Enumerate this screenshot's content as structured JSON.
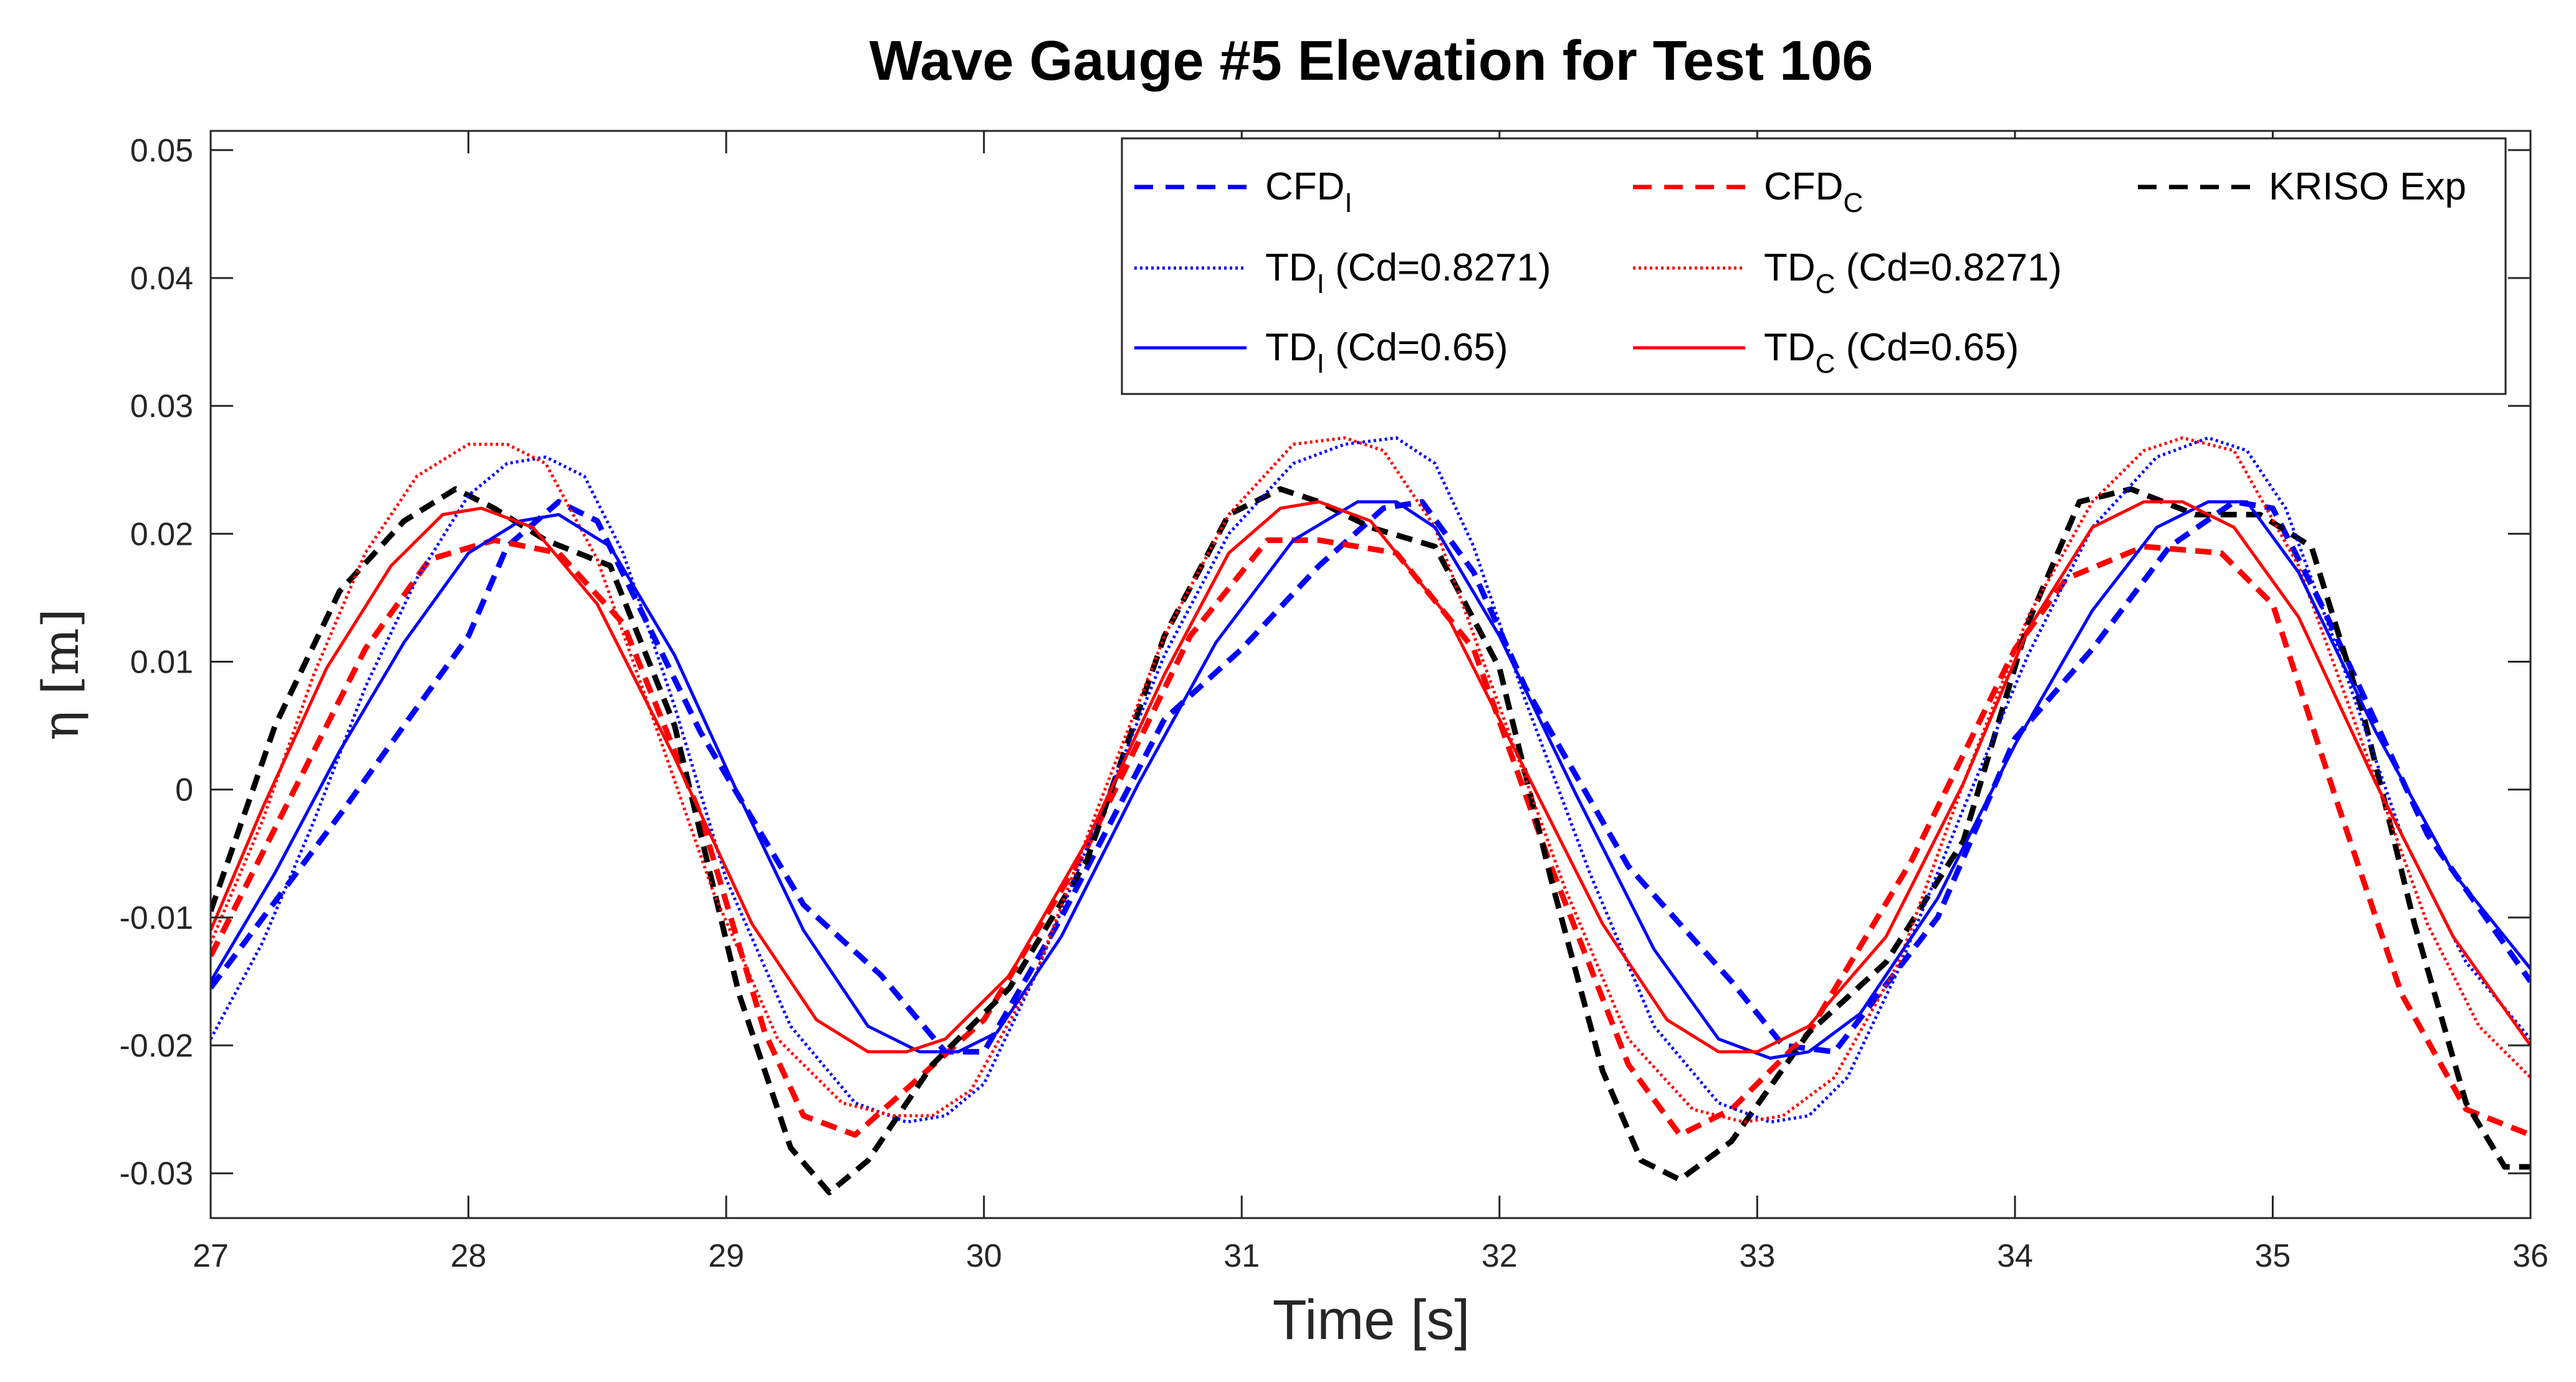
{
  "chart_data": {
    "type": "line",
    "title": "Wave Gauge #5 Elevation for Test 106",
    "xlabel": "Time [s]",
    "ylabel": "η [m]",
    "xlim": [
      27,
      36
    ],
    "ylim": [
      -0.0335,
      0.0515
    ],
    "xticks": [
      27,
      28,
      29,
      30,
      31,
      32,
      33,
      34,
      35,
      36
    ],
    "xtick_labels": [
      "27",
      "28",
      "29",
      "30",
      "31",
      "32",
      "33",
      "34",
      "35",
      "36"
    ],
    "yticks": [
      -0.03,
      -0.02,
      -0.01,
      0,
      0.01,
      0.02,
      0.03,
      0.04,
      0.05
    ],
    "ytick_labels": [
      "-0.03",
      "-0.02",
      "-0.01",
      "0",
      "0.01",
      "0.02",
      "0.03",
      "0.04",
      "0.05"
    ],
    "grid": false,
    "legend_position": "top-right",
    "series": [
      {
        "id": "cfd-i",
        "name": "CFD",
        "subscript": "I",
        "suffix": "",
        "color": "#0000ff",
        "style": "dashed",
        "x": [
          27.0,
          27.5,
          28.0,
          28.15,
          28.35,
          28.5,
          28.9,
          29.3,
          29.6,
          29.85,
          30.0,
          30.3,
          30.7,
          31.0,
          31.3,
          31.55,
          31.7,
          31.9,
          32.1,
          32.5,
          32.9,
          33.1,
          33.3,
          33.7,
          34.0,
          34.3,
          34.6,
          34.85,
          35.0,
          35.2,
          35.6,
          36.0
        ],
        "y": [
          -0.0155,
          -0.002,
          0.012,
          0.019,
          0.0225,
          0.021,
          0.0045,
          -0.009,
          -0.0145,
          -0.0205,
          -0.0205,
          -0.01,
          0.0055,
          0.011,
          0.0175,
          0.022,
          0.0225,
          0.017,
          0.008,
          -0.006,
          -0.015,
          -0.02,
          -0.0205,
          -0.01,
          0.004,
          0.011,
          0.019,
          0.0225,
          0.022,
          0.014,
          -0.0035,
          -0.015
        ]
      },
      {
        "id": "cfd-c",
        "name": "CFD",
        "subscript": "C",
        "suffix": "",
        "color": "#ff0000",
        "style": "dashed",
        "x": [
          27.0,
          27.3,
          27.6,
          27.85,
          28.1,
          28.35,
          28.6,
          28.9,
          29.15,
          29.3,
          29.5,
          29.75,
          30.0,
          30.4,
          30.8,
          31.1,
          31.3,
          31.6,
          31.9,
          32.2,
          32.5,
          32.7,
          32.9,
          33.2,
          33.6,
          34.0,
          34.2,
          34.5,
          34.8,
          35.0,
          35.25,
          35.5,
          35.75,
          36.0
        ],
        "y": [
          -0.013,
          -0.001,
          0.011,
          0.018,
          0.0195,
          0.0185,
          0.013,
          -0.002,
          -0.019,
          -0.0255,
          -0.027,
          -0.0225,
          -0.018,
          -0.0045,
          0.012,
          0.0195,
          0.0195,
          0.0185,
          0.011,
          -0.006,
          -0.0215,
          -0.027,
          -0.025,
          -0.019,
          -0.0055,
          0.011,
          0.0165,
          0.019,
          0.0185,
          0.0145,
          -0.001,
          -0.016,
          -0.025,
          -0.027
        ]
      },
      {
        "id": "kriso-exp",
        "name": "KRISO Exp",
        "subscript": "",
        "suffix": "",
        "color": "#000000",
        "style": "dashed",
        "x": [
          27.0,
          27.25,
          27.5,
          27.75,
          27.95,
          28.1,
          28.3,
          28.55,
          28.8,
          29.05,
          29.25,
          29.4,
          29.55,
          29.8,
          30.1,
          30.4,
          30.7,
          30.95,
          31.15,
          31.3,
          31.5,
          31.75,
          32.0,
          32.2,
          32.4,
          32.55,
          32.7,
          32.9,
          33.2,
          33.5,
          33.8,
          34.05,
          34.25,
          34.45,
          34.7,
          34.95,
          35.15,
          35.35,
          35.55,
          35.75,
          35.9,
          36.0
        ],
        "y": [
          -0.0095,
          0.005,
          0.0155,
          0.021,
          0.0235,
          0.022,
          0.0195,
          0.0175,
          0.005,
          -0.016,
          -0.028,
          -0.0315,
          -0.029,
          -0.0215,
          -0.0155,
          -0.0055,
          0.012,
          0.0215,
          0.0235,
          0.0225,
          0.0205,
          0.019,
          0.0095,
          -0.007,
          -0.022,
          -0.029,
          -0.0305,
          -0.0275,
          -0.019,
          -0.0135,
          -0.004,
          0.013,
          0.0225,
          0.0235,
          0.0215,
          0.0215,
          0.019,
          0.006,
          -0.0105,
          -0.0245,
          -0.0295,
          -0.0295
        ]
      },
      {
        "id": "td-i-08271",
        "name": "TD",
        "subscript": "I",
        "suffix": " (Cd=0.8271)",
        "color": "#0000ff",
        "style": "dotted",
        "x": [
          27.0,
          27.2,
          27.4,
          27.6,
          27.8,
          28.0,
          28.15,
          28.3,
          28.45,
          28.6,
          28.8,
          29.0,
          29.25,
          29.5,
          29.7,
          29.85,
          30.0,
          30.2,
          30.45,
          30.7,
          30.95,
          31.2,
          31.4,
          31.6,
          31.75,
          31.9,
          32.1,
          32.35,
          32.6,
          32.85,
          33.05,
          33.2,
          33.35,
          33.55,
          33.8,
          34.05,
          34.3,
          34.55,
          34.75,
          34.9,
          35.05,
          35.25,
          35.5,
          35.75,
          36.0
        ],
        "y": [
          -0.0195,
          -0.012,
          -0.0025,
          0.008,
          0.0165,
          0.023,
          0.0255,
          0.026,
          0.0245,
          0.0185,
          0.0065,
          -0.007,
          -0.0185,
          -0.0245,
          -0.026,
          -0.0255,
          -0.023,
          -0.0145,
          -0.002,
          0.0105,
          0.02,
          0.0255,
          0.027,
          0.0275,
          0.0255,
          0.019,
          0.007,
          -0.0065,
          -0.0185,
          -0.0245,
          -0.026,
          -0.0255,
          -0.0225,
          -0.014,
          -0.0015,
          0.0105,
          0.0205,
          0.026,
          0.0275,
          0.0265,
          0.022,
          0.011,
          -0.0035,
          -0.0135,
          -0.0195
        ]
      },
      {
        "id": "td-c-08271",
        "name": "TD",
        "subscript": "C",
        "suffix": " (Cd=0.8271)",
        "color": "#ff0000",
        "style": "dotted",
        "x": [
          27.0,
          27.2,
          27.4,
          27.6,
          27.8,
          28.0,
          28.15,
          28.3,
          28.5,
          28.7,
          28.95,
          29.2,
          29.45,
          29.65,
          29.8,
          29.95,
          30.2,
          30.45,
          30.7,
          30.95,
          31.2,
          31.4,
          31.55,
          31.75,
          32.0,
          32.25,
          32.5,
          32.75,
          32.95,
          33.1,
          33.3,
          33.55,
          33.8,
          34.05,
          34.3,
          34.5,
          34.65,
          34.85,
          35.1,
          35.35,
          35.6,
          35.8,
          36.0
        ],
        "y": [
          -0.012,
          -0.0025,
          0.009,
          0.0185,
          0.0245,
          0.027,
          0.027,
          0.0255,
          0.018,
          0.0065,
          -0.008,
          -0.0195,
          -0.0245,
          -0.0255,
          -0.0255,
          -0.0235,
          -0.0145,
          -0.001,
          0.012,
          0.0215,
          0.027,
          0.0275,
          0.0265,
          0.0205,
          0.0065,
          -0.0075,
          -0.0195,
          -0.025,
          -0.026,
          -0.0255,
          -0.0225,
          -0.0135,
          0.0005,
          0.0135,
          0.0225,
          0.0265,
          0.0275,
          0.0265,
          0.0175,
          0.0035,
          -0.0105,
          -0.0185,
          -0.0225
        ]
      },
      {
        "id": "td-i-065",
        "name": "TD",
        "subscript": "I",
        "suffix": " (Cd=0.65)",
        "color": "#0000ff",
        "style": "solid",
        "x": [
          27.0,
          27.25,
          27.5,
          27.75,
          28.0,
          28.2,
          28.35,
          28.55,
          28.8,
          29.05,
          29.3,
          29.55,
          29.75,
          29.9,
          30.05,
          30.3,
          30.6,
          30.9,
          31.2,
          31.45,
          31.6,
          31.75,
          32.0,
          32.3,
          32.6,
          32.85,
          33.05,
          33.2,
          33.4,
          33.7,
          34.0,
          34.3,
          34.55,
          34.75,
          34.9,
          35.1,
          35.4,
          35.7,
          36.0
        ],
        "y": [
          -0.015,
          -0.0065,
          0.003,
          0.0115,
          0.0185,
          0.021,
          0.0215,
          0.019,
          0.0105,
          -0.0005,
          -0.011,
          -0.0185,
          -0.0205,
          -0.0205,
          -0.019,
          -0.0115,
          0.0005,
          0.0115,
          0.0195,
          0.0225,
          0.0225,
          0.0205,
          0.012,
          -0.0005,
          -0.0125,
          -0.0195,
          -0.021,
          -0.0205,
          -0.0175,
          -0.0085,
          0.0035,
          0.014,
          0.0205,
          0.0225,
          0.0225,
          0.017,
          0.0045,
          -0.0065,
          -0.014
        ]
      },
      {
        "id": "td-c-065",
        "name": "TD",
        "subscript": "C",
        "suffix": " (Cd=0.65)",
        "color": "#ff0000",
        "style": "solid",
        "x": [
          27.0,
          27.2,
          27.45,
          27.7,
          27.9,
          28.05,
          28.25,
          28.5,
          28.8,
          29.1,
          29.35,
          29.55,
          29.7,
          29.85,
          30.1,
          30.4,
          30.7,
          30.95,
          31.15,
          31.3,
          31.5,
          31.8,
          32.1,
          32.4,
          32.65,
          32.85,
          33.0,
          33.2,
          33.5,
          33.8,
          34.05,
          34.3,
          34.5,
          34.65,
          34.85,
          35.1,
          35.4,
          35.7,
          36.0
        ],
        "y": [
          -0.011,
          -0.0015,
          0.0095,
          0.0175,
          0.0215,
          0.022,
          0.0205,
          0.0145,
          0.0025,
          -0.0105,
          -0.018,
          -0.0205,
          -0.0205,
          -0.0195,
          -0.0145,
          -0.004,
          0.009,
          0.0185,
          0.022,
          0.0225,
          0.021,
          0.0135,
          0.0015,
          -0.0105,
          -0.018,
          -0.0205,
          -0.0205,
          -0.0185,
          -0.0115,
          0.0005,
          0.0125,
          0.0205,
          0.0225,
          0.0225,
          0.0205,
          0.0135,
          0.0005,
          -0.0115,
          -0.02
        ]
      }
    ],
    "legend_layout": [
      [
        "cfd-i",
        "cfd-c",
        "kriso-exp"
      ],
      [
        "td-i-08271",
        "td-c-08271"
      ],
      [
        "td-i-065",
        "td-c-065"
      ]
    ]
  }
}
